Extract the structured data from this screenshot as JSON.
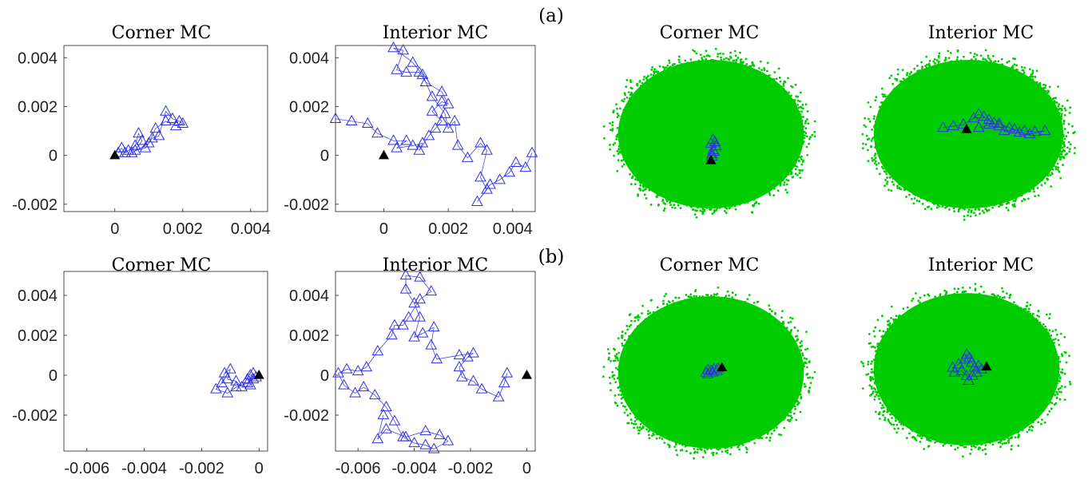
{
  "figure": {
    "row_labels": [
      "(a)",
      "(b)"
    ],
    "colors": {
      "trajectory": "#3030e8",
      "start_marker": "#000000",
      "cloud": "#00cc00",
      "axes": "#222222"
    }
  },
  "chart_data": [
    {
      "id": "a-corner-trace",
      "type": "scatter",
      "title": "Corner MC",
      "xlim": [
        -0.0015,
        0.0045
      ],
      "ylim": [
        -0.0023,
        0.0045
      ],
      "xticks": [
        0,
        0.002,
        0.004
      ],
      "xtick_labels": [
        "0",
        "0.002",
        "0.004"
      ],
      "yticks": [
        -0.002,
        0,
        0.002,
        0.004
      ],
      "ytick_labels": [
        "-0.002",
        "0",
        "0.002",
        "0.004"
      ],
      "grid": false,
      "start": [
        0,
        0
      ],
      "series": [
        {
          "values": [
            [
              0.0001,
              0.0001
            ],
            [
              0.0002,
              0.0003
            ],
            [
              0.0003,
              0.0001
            ],
            [
              0.0004,
              0.0002
            ],
            [
              0.0006,
              0.0004
            ],
            [
              0.0007,
              0.0009
            ],
            [
              0.0008,
              0.0006
            ],
            [
              0.0006,
              0.0002
            ],
            [
              0.0009,
              0.0003
            ],
            [
              0.0011,
              0.0007
            ],
            [
              0.0013,
              0.0008
            ],
            [
              0.0015,
              0.0018
            ],
            [
              0.0017,
              0.0015
            ],
            [
              0.0019,
              0.0014
            ],
            [
              0.002,
              0.0013
            ],
            [
              0.0018,
              0.0012
            ],
            [
              0.0015,
              0.0014
            ],
            [
              0.0012,
              0.0011
            ],
            [
              0.001,
              0.0005
            ],
            [
              0.0005,
              0.0001
            ]
          ]
        }
      ]
    },
    {
      "id": "a-interior-trace",
      "type": "scatter",
      "title": "Interior MC",
      "xlim": [
        -0.0015,
        0.0047
      ],
      "ylim": [
        -0.0023,
        0.0045
      ],
      "xticks": [
        0,
        0.002,
        0.004
      ],
      "xtick_labels": [
        "0",
        "0.002",
        "0.004"
      ],
      "yticks": [
        -0.002,
        0,
        0.002,
        0.004
      ],
      "ytick_labels": [
        "-0.002",
        "0",
        "0.002",
        "0.004"
      ],
      "grid": false,
      "start": [
        0,
        0
      ],
      "series": [
        {
          "values": [
            [
              -0.0015,
              0.0015
            ],
            [
              -0.001,
              0.0014
            ],
            [
              -0.0005,
              0.0013
            ],
            [
              -0.0002,
              0.0009
            ],
            [
              0.0003,
              0.0006
            ],
            [
              0.0007,
              0.0006
            ],
            [
              0.0004,
              0.0003
            ],
            [
              0.0009,
              0.0004
            ],
            [
              0.0012,
              0.0005
            ],
            [
              0.0011,
              0.0002
            ],
            [
              0.0014,
              0.0008
            ],
            [
              0.0016,
              0.0011
            ],
            [
              0.0018,
              0.0014
            ],
            [
              0.0015,
              0.0018
            ],
            [
              0.0018,
              0.0022
            ],
            [
              0.002,
              0.0021
            ],
            [
              0.0018,
              0.0026
            ],
            [
              0.0013,
              0.003
            ],
            [
              0.0011,
              0.0034
            ],
            [
              0.0007,
              0.0034
            ],
            [
              0.0004,
              0.0035
            ],
            [
              0.0006,
              0.0043
            ],
            [
              0.0003,
              0.0044
            ],
            [
              0.0009,
              0.0038
            ],
            [
              0.0012,
              0.0033
            ],
            [
              0.0015,
              0.0024
            ],
            [
              0.0019,
              0.0017
            ],
            [
              0.002,
              0.0011
            ],
            [
              0.0022,
              0.0014
            ],
            [
              0.0023,
              0.0004
            ],
            [
              0.0026,
              -0.0001
            ],
            [
              0.003,
              0.0005
            ],
            [
              0.0032,
              0.0002
            ],
            [
              0.003,
              -0.0009
            ],
            [
              0.0032,
              -0.0014
            ],
            [
              0.0029,
              -0.0019
            ],
            [
              0.0033,
              -0.0012
            ],
            [
              0.0036,
              -0.001
            ],
            [
              0.0039,
              -0.0007
            ],
            [
              0.0041,
              -0.0003
            ],
            [
              0.0044,
              -0.0005
            ],
            [
              0.0046,
              0.0001
            ]
          ]
        }
      ]
    },
    {
      "id": "b-corner-trace",
      "type": "scatter",
      "title": "Corner MC",
      "xlim": [
        -0.0068,
        0.0003
      ],
      "ylim": [
        -0.0038,
        0.0052
      ],
      "xticks": [
        -0.006,
        -0.004,
        -0.002,
        0
      ],
      "xtick_labels": [
        "-0.006",
        "-0.004",
        "-0.002",
        "0"
      ],
      "yticks": [
        -0.002,
        0,
        0.002,
        0.004
      ],
      "ytick_labels": [
        "-0.002",
        "0",
        "0.002",
        "0.004"
      ],
      "grid": false,
      "start": [
        0,
        0
      ],
      "series": [
        {
          "values": [
            [
              -0.0002,
              0.0001
            ],
            [
              -0.0003,
              0.0
            ],
            [
              -0.0001,
              -0.0001
            ],
            [
              -0.0004,
              -0.0002
            ],
            [
              -0.0003,
              -0.0005
            ],
            [
              -0.0006,
              -0.0006
            ],
            [
              -0.0008,
              -0.0003
            ],
            [
              -0.0011,
              -0.0002
            ],
            [
              -0.001,
              0.0003
            ],
            [
              -0.0012,
              0.0001
            ],
            [
              -0.0013,
              -0.0004
            ],
            [
              -0.0015,
              -0.0007
            ],
            [
              -0.0011,
              -0.0009
            ],
            [
              -0.0008,
              -0.0006
            ],
            [
              -0.0004,
              -0.0004
            ],
            [
              -0.0002,
              -0.0002
            ]
          ]
        }
      ]
    },
    {
      "id": "b-interior-trace",
      "type": "scatter",
      "title": "Interior MC",
      "xlim": [
        -0.0068,
        0.0003
      ],
      "ylim": [
        -0.0038,
        0.0052
      ],
      "xticks": [
        -0.006,
        -0.004,
        -0.002,
        0
      ],
      "xtick_labels": [
        "-0.006",
        "-0.004",
        "-0.002",
        "0"
      ],
      "yticks": [
        -0.002,
        0,
        0.002,
        0.004
      ],
      "ytick_labels": [
        "-0.002",
        "0",
        "0.002",
        "0.004"
      ],
      "grid": false,
      "start": [
        0,
        0
      ],
      "series": [
        {
          "values": [
            [
              -0.0007,
              0.0001
            ],
            [
              -0.0008,
              -0.0004
            ],
            [
              -0.001,
              -0.0011
            ],
            [
              -0.0016,
              -0.0007
            ],
            [
              -0.0019,
              -0.0003
            ],
            [
              -0.0023,
              -0.0001
            ],
            [
              -0.0024,
              0.0004
            ],
            [
              -0.0021,
              0.0009
            ],
            [
              -0.0019,
              0.0011
            ],
            [
              -0.0024,
              0.001
            ],
            [
              -0.0032,
              0.0008
            ],
            [
              -0.0034,
              0.0015
            ],
            [
              -0.0033,
              0.0024
            ],
            [
              -0.0037,
              0.0021
            ],
            [
              -0.004,
              0.0019
            ],
            [
              -0.0038,
              0.0029
            ],
            [
              -0.004,
              0.0036
            ],
            [
              -0.0043,
              0.0043
            ],
            [
              -0.0043,
              0.005
            ],
            [
              -0.0038,
              0.0049
            ],
            [
              -0.0034,
              0.0042
            ],
            [
              -0.0038,
              0.0038
            ],
            [
              -0.0042,
              0.0029
            ],
            [
              -0.0044,
              0.0025
            ],
            [
              -0.0047,
              0.0025
            ],
            [
              -0.0048,
              0.002
            ],
            [
              -0.0053,
              0.0012
            ],
            [
              -0.0057,
              0.0004
            ],
            [
              -0.006,
              0.0002
            ],
            [
              -0.0064,
              0.0003
            ],
            [
              -0.0067,
              0.0001
            ],
            [
              -0.0065,
              -0.0005
            ],
            [
              -0.0061,
              -0.0009
            ],
            [
              -0.0058,
              -0.0006
            ],
            [
              -0.0054,
              -0.001
            ],
            [
              -0.005,
              -0.0016
            ],
            [
              -0.0047,
              -0.0023
            ],
            [
              -0.0044,
              -0.0031
            ],
            [
              -0.004,
              -0.0034
            ],
            [
              -0.0036,
              -0.0035
            ],
            [
              -0.0033,
              -0.0037
            ],
            [
              -0.0028,
              -0.0033
            ],
            [
              -0.0031,
              -0.003
            ],
            [
              -0.0036,
              -0.0028
            ],
            [
              -0.0043,
              -0.0031
            ],
            [
              -0.005,
              -0.0027
            ],
            [
              -0.0053,
              -0.0032
            ],
            [
              -0.0051,
              -0.002
            ]
          ]
        }
      ]
    },
    {
      "id": "a-corner-cloud",
      "type": "scatter",
      "title": "Corner MC",
      "axes_visible": false,
      "cloud": true,
      "xlim": [
        -1,
        1
      ],
      "ylim": [
        -1,
        1
      ],
      "start": [
        -0.0,
        -0.33
      ],
      "series": [
        {
          "values": [
            [
              0.01,
              -0.28
            ],
            [
              0.03,
              -0.22
            ],
            [
              0.05,
              -0.15
            ],
            [
              0.04,
              -0.1
            ],
            [
              0.02,
              -0.07
            ],
            [
              0.0,
              -0.12
            ],
            [
              0.02,
              -0.2
            ],
            [
              0.01,
              -0.25
            ]
          ]
        }
      ]
    },
    {
      "id": "a-interior-cloud",
      "type": "scatter",
      "title": "Interior MC",
      "axes_visible": false,
      "cloud": true,
      "xlim": [
        -1,
        1
      ],
      "ylim": [
        -1,
        1
      ],
      "start": [
        -0.02,
        0.06
      ],
      "series": [
        {
          "values": [
            [
              -0.25,
              0.08
            ],
            [
              -0.15,
              0.1
            ],
            [
              -0.05,
              0.12
            ],
            [
              0.05,
              0.2
            ],
            [
              0.1,
              0.25
            ],
            [
              0.15,
              0.22
            ],
            [
              0.2,
              0.18
            ],
            [
              0.25,
              0.14
            ],
            [
              0.3,
              0.1
            ],
            [
              0.35,
              0.04
            ],
            [
              0.45,
              0.06
            ],
            [
              0.55,
              0.04
            ],
            [
              0.65,
              0.03
            ],
            [
              0.75,
              0.04
            ],
            [
              0.6,
              0.0
            ],
            [
              0.5,
              0.02
            ],
            [
              0.4,
              0.08
            ],
            [
              0.3,
              0.13
            ],
            [
              0.2,
              0.12
            ],
            [
              0.1,
              0.08
            ]
          ]
        }
      ]
    },
    {
      "id": "b-corner-cloud",
      "type": "scatter",
      "title": "Corner MC",
      "axes_visible": false,
      "cloud": true,
      "xlim": [
        -1,
        1
      ],
      "ylim": [
        -1,
        1
      ],
      "start": [
        0.11,
        0.06
      ],
      "series": [
        {
          "values": [
            [
              0.07,
              0.05
            ],
            [
              0.03,
              0.04
            ],
            [
              0.0,
              0.02
            ],
            [
              -0.03,
              0.03
            ],
            [
              -0.05,
              0.0
            ],
            [
              -0.03,
              -0.02
            ],
            [
              0.02,
              0.0
            ],
            [
              0.06,
              0.02
            ]
          ]
        }
      ]
    },
    {
      "id": "b-interior-cloud",
      "type": "scatter",
      "title": "Interior MC",
      "axes_visible": false,
      "cloud": true,
      "xlim": [
        -1,
        1
      ],
      "ylim": [
        -1,
        1
      ],
      "start": [
        0.2,
        0.03
      ],
      "series": [
        {
          "values": [
            [
              0.15,
              0.0
            ],
            [
              0.12,
              0.04
            ],
            [
              0.08,
              0.02
            ],
            [
              0.05,
              0.08
            ],
            [
              0.03,
              0.14
            ],
            [
              0.0,
              0.18
            ],
            [
              -0.02,
              0.12
            ],
            [
              -0.08,
              0.06
            ],
            [
              -0.14,
              0.02
            ],
            [
              -0.12,
              -0.04
            ],
            [
              -0.05,
              -0.02
            ],
            [
              0.0,
              -0.08
            ],
            [
              0.02,
              -0.14
            ],
            [
              0.06,
              -0.08
            ],
            [
              0.1,
              -0.04
            ]
          ]
        }
      ]
    }
  ]
}
